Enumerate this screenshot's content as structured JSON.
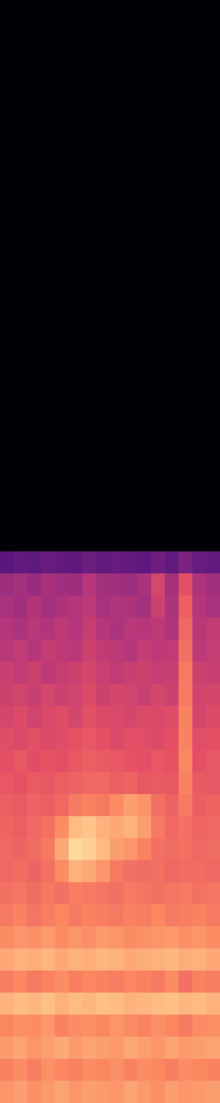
{
  "chart_data": {
    "type": "heatmap",
    "tick_labels": false,
    "zlim": [
      0,
      100
    ],
    "z": [
      [
        0,
        0,
        0,
        0,
        0,
        0,
        0,
        0,
        0,
        0,
        0,
        0,
        0,
        0,
        0,
        0
      ],
      [
        0,
        0,
        0,
        0,
        0,
        0,
        0,
        0,
        0,
        0,
        0,
        0,
        0,
        0,
        0,
        0
      ],
      [
        0,
        0,
        0,
        0,
        0,
        0,
        0,
        0,
        0,
        0,
        0,
        0,
        0,
        0,
        0,
        0
      ],
      [
        0,
        0,
        0,
        0,
        0,
        0,
        0,
        0,
        0,
        0,
        0,
        0,
        0,
        0,
        0,
        0
      ],
      [
        0,
        0,
        0,
        0,
        0,
        0,
        0,
        0,
        0,
        0,
        0,
        0,
        0,
        0,
        0,
        0
      ],
      [
        0,
        0,
        0,
        0,
        0,
        0,
        0,
        0,
        0,
        0,
        0,
        0,
        0,
        0,
        0,
        0
      ],
      [
        0,
        0,
        0,
        0,
        0,
        0,
        0,
        0,
        0,
        0,
        0,
        0,
        0,
        0,
        0,
        0
      ],
      [
        0,
        0,
        0,
        0,
        0,
        0,
        0,
        0,
        0,
        0,
        0,
        0,
        0,
        0,
        0,
        0
      ],
      [
        0,
        0,
        0,
        0,
        0,
        0,
        0,
        0,
        0,
        0,
        0,
        0,
        0,
        0,
        0,
        0
      ],
      [
        0,
        0,
        0,
        0,
        0,
        0,
        0,
        0,
        0,
        0,
        0,
        0,
        0,
        0,
        0,
        0
      ],
      [
        0,
        0,
        0,
        0,
        0,
        0,
        0,
        0,
        0,
        0,
        0,
        0,
        0,
        0,
        0,
        0
      ],
      [
        0,
        0,
        0,
        0,
        0,
        0,
        0,
        0,
        0,
        0,
        0,
        0,
        0,
        0,
        0,
        0
      ],
      [
        0,
        0,
        0,
        0,
        0,
        0,
        0,
        0,
        0,
        0,
        0,
        0,
        0,
        0,
        0,
        0
      ],
      [
        0,
        0,
        0,
        0,
        0,
        0,
        0,
        0,
        0,
        0,
        0,
        0,
        0,
        0,
        0,
        0
      ],
      [
        0,
        0,
        0,
        0,
        0,
        0,
        0,
        0,
        0,
        0,
        0,
        0,
        0,
        0,
        0,
        0
      ],
      [
        0,
        0,
        0,
        0,
        0,
        0,
        0,
        0,
        0,
        0,
        0,
        0,
        0,
        0,
        0,
        0
      ],
      [
        0,
        0,
        0,
        0,
        0,
        0,
        0,
        0,
        0,
        0,
        0,
        0,
        0,
        0,
        0,
        0
      ],
      [
        0,
        0,
        0,
        0,
        0,
        0,
        0,
        0,
        0,
        0,
        0,
        0,
        0,
        0,
        0,
        0
      ],
      [
        0,
        0,
        0,
        0,
        0,
        0,
        0,
        0,
        0,
        0,
        0,
        0,
        0,
        0,
        0,
        0
      ],
      [
        0,
        0,
        0,
        0,
        0,
        0,
        0,
        0,
        0,
        0,
        0,
        0,
        0,
        0,
        0,
        0
      ],
      [
        0,
        0,
        0,
        0,
        0,
        0,
        0,
        0,
        0,
        0,
        0,
        0,
        0,
        0,
        0,
        0
      ],
      [
        0,
        0,
        0,
        0,
        0,
        0,
        0,
        0,
        0,
        0,
        0,
        0,
        0,
        0,
        0,
        0
      ],
      [
        0,
        0,
        0,
        0,
        0,
        0,
        0,
        0,
        0,
        0,
        0,
        0,
        0,
        0,
        0,
        0
      ],
      [
        0,
        0,
        0,
        0,
        0,
        0,
        0,
        0,
        0,
        0,
        0,
        0,
        0,
        0,
        0,
        0
      ],
      [
        0,
        0,
        0,
        0,
        0,
        0,
        0,
        0,
        0,
        0,
        0,
        0,
        0,
        0,
        0,
        0
      ],
      [
        28,
        30,
        29,
        31,
        30,
        29,
        32,
        30,
        31,
        30,
        29,
        33,
        30,
        36,
        31,
        30
      ],
      [
        44,
        46,
        43,
        47,
        45,
        44,
        50,
        46,
        45,
        44,
        47,
        58,
        46,
        62,
        48,
        45
      ],
      [
        47,
        45,
        49,
        46,
        48,
        50,
        52,
        47,
        49,
        48,
        46,
        56,
        48,
        66,
        50,
        47
      ],
      [
        50,
        48,
        51,
        49,
        52,
        50,
        54,
        50,
        48,
        51,
        50,
        52,
        49,
        68,
        51,
        53
      ],
      [
        51,
        53,
        50,
        54,
        52,
        51,
        56,
        53,
        52,
        50,
        54,
        52,
        53,
        70,
        52,
        54
      ],
      [
        55,
        53,
        56,
        52,
        54,
        56,
        58,
        55,
        53,
        55,
        56,
        54,
        55,
        72,
        56,
        55
      ],
      [
        56,
        57,
        55,
        58,
        56,
        57,
        60,
        56,
        58,
        57,
        55,
        58,
        56,
        72,
        57,
        58
      ],
      [
        58,
        60,
        57,
        59,
        61,
        58,
        62,
        60,
        59,
        58,
        60,
        59,
        61,
        74,
        58,
        60
      ],
      [
        61,
        59,
        62,
        60,
        61,
        63,
        64,
        62,
        60,
        62,
        61,
        60,
        62,
        74,
        61,
        62
      ],
      [
        62,
        64,
        61,
        63,
        62,
        64,
        66,
        65,
        64,
        63,
        62,
        64,
        63,
        75,
        62,
        64
      ],
      [
        64,
        63,
        65,
        64,
        66,
        67,
        68,
        68,
        66,
        67,
        64,
        65,
        64,
        74,
        65,
        64
      ],
      [
        66,
        65,
        67,
        66,
        68,
        72,
        74,
        72,
        76,
        80,
        78,
        70,
        67,
        72,
        66,
        67
      ],
      [
        67,
        66,
        68,
        70,
        76,
        86,
        88,
        84,
        82,
        84,
        80,
        72,
        68,
        70,
        67,
        68
      ],
      [
        68,
        67,
        69,
        72,
        82,
        92,
        90,
        86,
        80,
        78,
        74,
        70,
        69,
        70,
        68,
        69
      ],
      [
        68,
        69,
        67,
        70,
        76,
        84,
        82,
        78,
        72,
        70,
        69,
        70,
        68,
        69,
        69,
        68
      ],
      [
        70,
        71,
        69,
        72,
        70,
        73,
        72,
        71,
        70,
        72,
        71,
        70,
        71,
        72,
        70,
        71
      ],
      [
        72,
        74,
        71,
        73,
        75,
        72,
        74,
        73,
        72,
        74,
        73,
        75,
        72,
        73,
        74,
        72
      ],
      [
        76,
        78,
        77,
        79,
        76,
        78,
        77,
        79,
        78,
        76,
        77,
        78,
        79,
        77,
        78,
        76
      ],
      [
        82,
        84,
        83,
        85,
        82,
        84,
        83,
        85,
        84,
        82,
        83,
        84,
        85,
        83,
        84,
        82
      ],
      [
        73,
        75,
        72,
        74,
        76,
        73,
        75,
        74,
        73,
        75,
        74,
        72,
        76,
        70,
        74,
        73
      ],
      [
        84,
        86,
        85,
        87,
        84,
        86,
        85,
        87,
        86,
        84,
        85,
        86,
        87,
        85,
        86,
        84
      ],
      [
        75,
        77,
        76,
        78,
        74,
        76,
        77,
        75,
        78,
        76,
        74,
        77,
        75,
        72,
        76,
        77
      ],
      [
        79,
        81,
        78,
        80,
        82,
        79,
        81,
        80,
        79,
        82,
        80,
        78,
        81,
        79,
        80,
        81
      ],
      [
        74,
        76,
        73,
        77,
        75,
        74,
        76,
        75,
        77,
        74,
        76,
        75,
        73,
        76,
        75,
        74
      ],
      [
        78,
        80,
        77,
        79,
        81,
        78,
        80,
        79,
        78,
        81,
        79,
        77,
        80,
        78,
        79,
        80
      ]
    ]
  }
}
